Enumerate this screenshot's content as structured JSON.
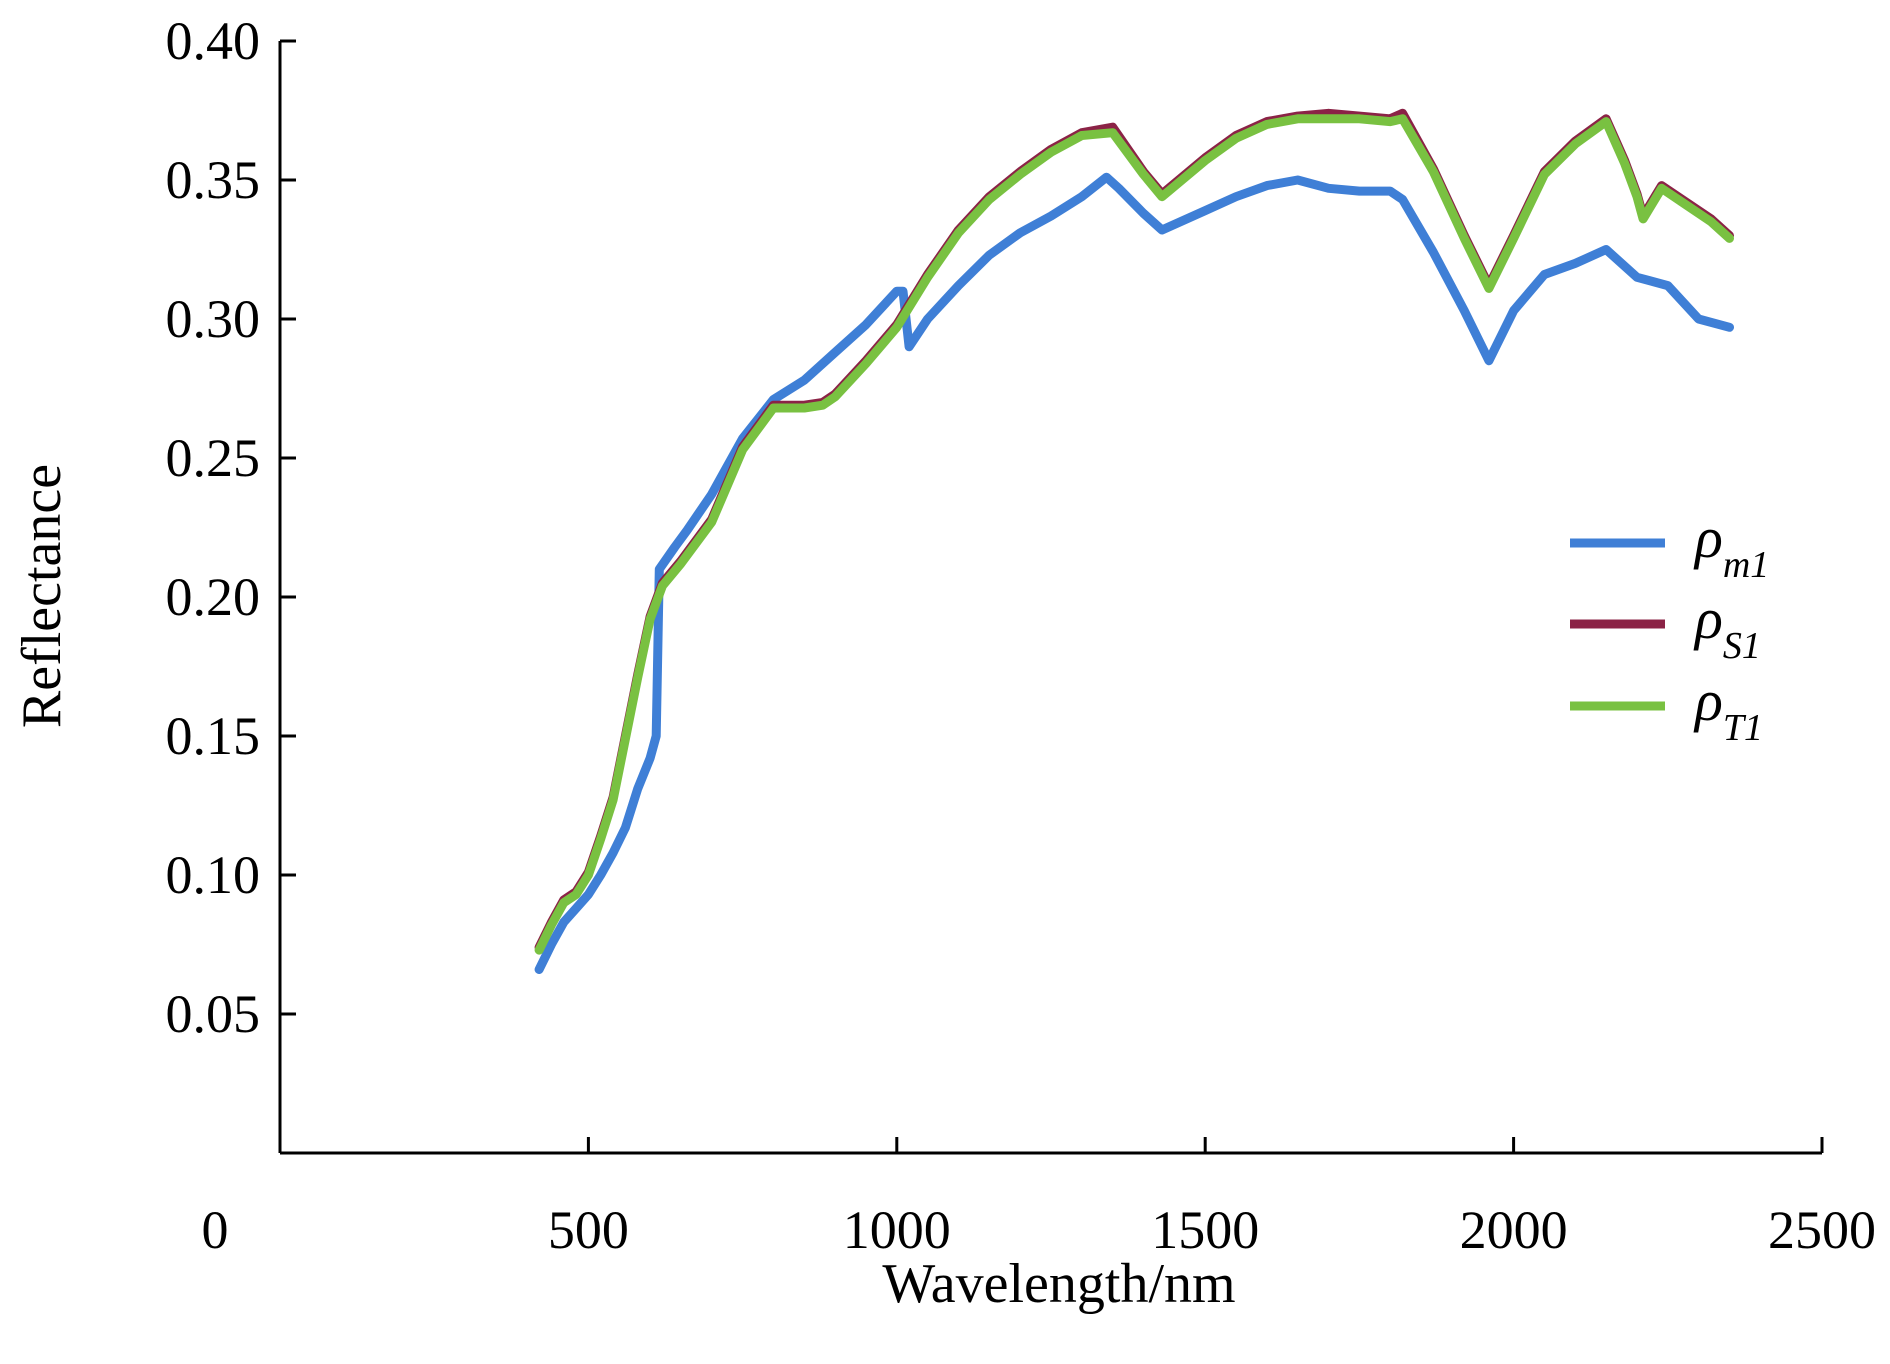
{
  "chart_data": {
    "type": "line",
    "xlabel": "Wavelength/nm",
    "ylabel": "Reflectance",
    "xlim": [
      0,
      2500
    ],
    "ylim": [
      0.0,
      0.4
    ],
    "x_ticks": [
      0,
      500,
      1000,
      1500,
      2000,
      2500
    ],
    "x_tick_labels": [
      "0",
      "500",
      "1000",
      "1500",
      "2000",
      "2500"
    ],
    "y_ticks": [
      0.05,
      0.1,
      0.15,
      0.2,
      0.25,
      0.3,
      0.35,
      0.4
    ],
    "y_tick_labels": [
      "0.05",
      "0.10",
      "0.15",
      "0.20",
      "0.25",
      "0.30",
      "0.35",
      "0.40"
    ],
    "grid": false,
    "legend_position": "right",
    "series": [
      {
        "name": "ρm1",
        "symbol": "ρ",
        "subscript": "m1",
        "color": "#3f7fd6",
        "x": [
          420,
          440,
          460,
          480,
          500,
          520,
          540,
          560,
          580,
          600,
          610,
          615,
          640,
          660,
          700,
          750,
          800,
          850,
          900,
          950,
          1000,
          1010,
          1020,
          1050,
          1100,
          1150,
          1200,
          1250,
          1300,
          1340,
          1360,
          1400,
          1430,
          1500,
          1550,
          1600,
          1650,
          1700,
          1750,
          1800,
          1820,
          1870,
          1920,
          1960,
          2000,
          2050,
          2100,
          2150,
          2200,
          2250,
          2300,
          2350
        ],
        "y": [
          0.066,
          0.075,
          0.083,
          0.088,
          0.093,
          0.1,
          0.108,
          0.117,
          0.131,
          0.142,
          0.15,
          0.21,
          0.218,
          0.224,
          0.237,
          0.257,
          0.271,
          0.278,
          0.288,
          0.298,
          0.31,
          0.31,
          0.29,
          0.3,
          0.312,
          0.323,
          0.331,
          0.337,
          0.344,
          0.351,
          0.347,
          0.338,
          0.332,
          0.339,
          0.344,
          0.348,
          0.35,
          0.347,
          0.346,
          0.346,
          0.343,
          0.324,
          0.303,
          0.285,
          0.303,
          0.316,
          0.32,
          0.325,
          0.315,
          0.312,
          0.3,
          0.297
        ]
      },
      {
        "name": "ρS1",
        "symbol": "ρ",
        "subscript": "S1",
        "color": "#8b2346",
        "x": [
          420,
          440,
          460,
          480,
          500,
          520,
          540,
          560,
          580,
          600,
          620,
          650,
          700,
          750,
          800,
          850,
          880,
          900,
          950,
          1000,
          1050,
          1100,
          1150,
          1200,
          1250,
          1300,
          1350,
          1400,
          1430,
          1500,
          1550,
          1600,
          1650,
          1700,
          1750,
          1800,
          1820,
          1870,
          1920,
          1960,
          2000,
          2050,
          2100,
          2150,
          2180,
          2200,
          2210,
          2240,
          2280,
          2320,
          2350
        ],
        "y": [
          0.074,
          0.083,
          0.091,
          0.094,
          0.101,
          0.114,
          0.128,
          0.15,
          0.172,
          0.193,
          0.205,
          0.213,
          0.228,
          0.254,
          0.269,
          0.269,
          0.27,
          0.273,
          0.285,
          0.298,
          0.316,
          0.332,
          0.344,
          0.353,
          0.361,
          0.367,
          0.369,
          0.353,
          0.345,
          0.358,
          0.366,
          0.371,
          0.373,
          0.374,
          0.373,
          0.372,
          0.374,
          0.354,
          0.33,
          0.312,
          0.33,
          0.353,
          0.364,
          0.372,
          0.357,
          0.345,
          0.337,
          0.348,
          0.342,
          0.336,
          0.33
        ]
      },
      {
        "name": "ρT1",
        "symbol": "ρ",
        "subscript": "T1",
        "color": "#79c141",
        "x": [
          420,
          440,
          460,
          480,
          500,
          520,
          540,
          560,
          580,
          600,
          620,
          650,
          700,
          750,
          800,
          850,
          880,
          900,
          950,
          1000,
          1050,
          1100,
          1150,
          1200,
          1250,
          1300,
          1350,
          1400,
          1430,
          1500,
          1550,
          1600,
          1650,
          1700,
          1750,
          1800,
          1820,
          1870,
          1920,
          1960,
          2000,
          2050,
          2100,
          2150,
          2180,
          2200,
          2210,
          2240,
          2280,
          2320,
          2350
        ],
        "y": [
          0.073,
          0.082,
          0.09,
          0.093,
          0.1,
          0.113,
          0.127,
          0.149,
          0.171,
          0.192,
          0.204,
          0.212,
          0.227,
          0.253,
          0.268,
          0.268,
          0.269,
          0.272,
          0.284,
          0.297,
          0.315,
          0.331,
          0.343,
          0.352,
          0.36,
          0.366,
          0.367,
          0.352,
          0.344,
          0.357,
          0.365,
          0.37,
          0.372,
          0.372,
          0.372,
          0.371,
          0.372,
          0.353,
          0.329,
          0.311,
          0.329,
          0.352,
          0.363,
          0.371,
          0.356,
          0.344,
          0.336,
          0.347,
          0.341,
          0.335,
          0.329
        ]
      }
    ]
  }
}
